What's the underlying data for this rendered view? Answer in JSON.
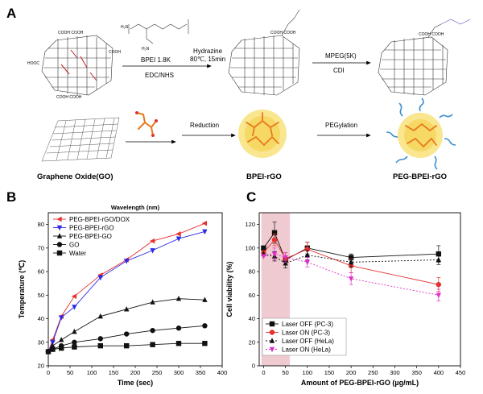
{
  "panels": {
    "a": {
      "letter": "A",
      "reagents": {
        "bpei": "BPEI 1.8K",
        "edc": "EDC/NHS",
        "hydrazine": "Hydrazine",
        "hydrazine_cond": "80℃, 15min",
        "mpeg": "MPEG(5K)",
        "cdi": "CDI",
        "reduction": "Reduction",
        "pegylation": "PEGylation"
      },
      "captions": {
        "go": "Graphene Oxide(GO)",
        "bpei_rgo": "BPEI-rGO",
        "peg_bpei_rgo": "PEG-BPEI-rGO"
      }
    },
    "b": {
      "letter": "B"
    },
    "c": {
      "letter": "C"
    }
  },
  "colors": {
    "red": "#e53030",
    "blue": "#2a2ae8",
    "black": "#111111",
    "magenta": "#e030c8",
    "highlight": "#e9b9c1",
    "orange": "#e87a1c",
    "yellow": "#f8e27a",
    "teal": "#3a8fd0"
  },
  "chart_data": [
    {
      "type": "line",
      "title": "Wavelength (nm)",
      "xlabel": "Time (sec)",
      "ylabel": "Temperature (℃)",
      "xlim": [
        0,
        400
      ],
      "ylim": [
        20,
        85
      ],
      "xticks": [
        0,
        50,
        100,
        150,
        200,
        250,
        300,
        350,
        400
      ],
      "yticks": [
        20,
        30,
        40,
        50,
        60,
        70,
        80
      ],
      "legend": "top-left",
      "x": [
        0,
        10,
        30,
        60,
        120,
        180,
        240,
        300,
        360
      ],
      "series": [
        {
          "name": "PEG-BPEI-rGO/DOX",
          "color": "#e53030",
          "marker": "triangle-left",
          "values": [
            26,
            31,
            41,
            49.5,
            58.5,
            65,
            73,
            76,
            80.5
          ]
        },
        {
          "name": "PEG-BPEI-rGO",
          "color": "#2a2ae8",
          "marker": "triangle-down",
          "values": [
            26,
            30,
            40.5,
            45,
            57.5,
            64.5,
            69,
            74,
            77
          ]
        },
        {
          "name": "PEG-BPEI-GO",
          "color": "#111111",
          "marker": "triangle-up",
          "values": [
            26,
            28.5,
            31,
            34.5,
            41,
            44,
            47,
            48.5,
            48
          ]
        },
        {
          "name": "GO",
          "color": "#111111",
          "marker": "circle",
          "values": [
            26,
            27,
            28.5,
            30,
            31.5,
            33.5,
            35,
            36,
            37
          ]
        },
        {
          "name": "Water",
          "color": "#111111",
          "marker": "square",
          "values": [
            26,
            27,
            27.5,
            28,
            28.5,
            28.5,
            29,
            29.5,
            29.5
          ]
        }
      ]
    },
    {
      "type": "line",
      "xlabel": "Amount of PEG-BPEI-rGO (µg/mL)",
      "ylabel": "Cell viability (%)",
      "xlim": [
        -10,
        450
      ],
      "ylim": [
        0,
        130
      ],
      "xticks": [
        0,
        50,
        100,
        150,
        200,
        250,
        300,
        350,
        400,
        450
      ],
      "yticks": [
        0,
        20,
        40,
        60,
        80,
        100,
        120
      ],
      "legend": "bottom-left",
      "highlight_x": [
        -5,
        60
      ],
      "x": [
        0,
        25,
        50,
        100,
        200,
        400
      ],
      "series": [
        {
          "name": "Laser OFF (PC-3)",
          "color": "#111111",
          "marker": "square",
          "dash": "solid",
          "values": [
            100,
            113,
            90,
            100,
            92,
            95
          ],
          "err": [
            0,
            9,
            0,
            5,
            3,
            7
          ]
        },
        {
          "name": "Laser ON (PC-3)",
          "color": "#e53030",
          "marker": "circle",
          "dash": "solid",
          "values": [
            96,
            107,
            91,
            99,
            85,
            69
          ],
          "err": [
            0,
            5,
            5,
            6,
            6,
            6
          ]
        },
        {
          "name": "Laser OFF (HeLa)",
          "color": "#111111",
          "marker": "triangle-up",
          "dash": "dotted",
          "values": [
            95,
            93,
            87,
            94,
            88,
            90
          ],
          "err": [
            0,
            4,
            4,
            4,
            4,
            4
          ]
        },
        {
          "name": "Laser ON (HeLa)",
          "color": "#e030c8",
          "marker": "triangle-down",
          "dash": "dotted",
          "values": [
            93,
            95,
            92,
            88,
            74,
            60
          ],
          "err": [
            0,
            5,
            4,
            4,
            5,
            5
          ]
        }
      ]
    }
  ]
}
